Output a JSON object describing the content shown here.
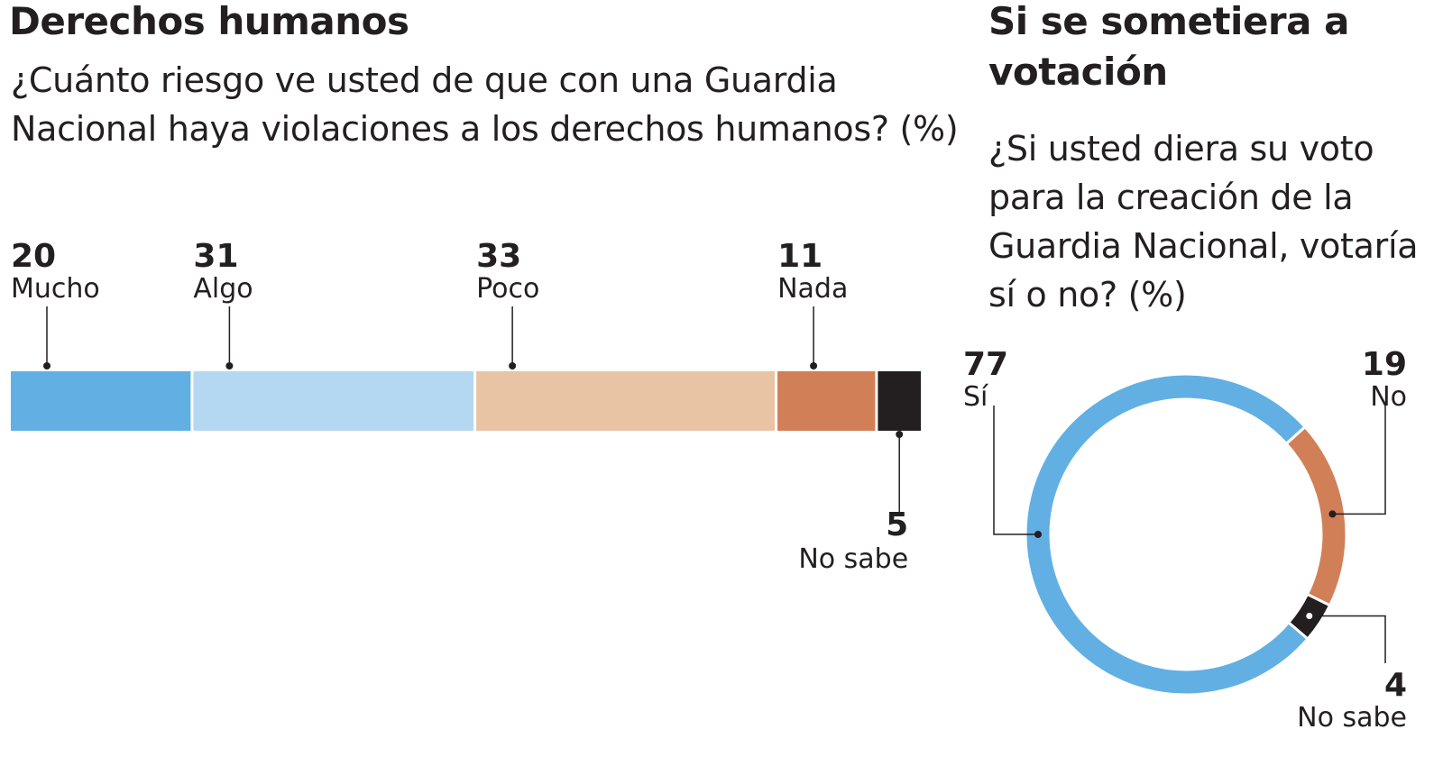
{
  "left": {
    "title": "Derechos humanos",
    "question": "¿Cuánto riesgo ve usted de que con una Guardia Nacional haya violaciones a los derechos humanos? (%)"
  },
  "right": {
    "title": "Si se sometiera a votación",
    "question": "¿Si usted diera su voto para la creación de la Guardia Nacional, votaría sí o no? (%)"
  },
  "chart_data": [
    {
      "type": "bar",
      "orientation": "horizontal-stacked",
      "categories": [
        "Mucho",
        "Algo",
        "Poco",
        "Nada",
        "No sabe"
      ],
      "values": [
        20,
        31,
        33,
        11,
        5
      ],
      "colors": [
        "#62b0e3",
        "#b5d8f2",
        "#e8c4a5",
        "#d17f57",
        "#231f20"
      ],
      "xlim": [
        0,
        100
      ],
      "grid": false,
      "legend": "none"
    },
    {
      "type": "pie",
      "variant": "donut",
      "categories": [
        "Sí",
        "No",
        "No sabe"
      ],
      "values": [
        77,
        19,
        4
      ],
      "colors": [
        "#62b0e3",
        "#d17f57",
        "#231f20"
      ],
      "grid": false,
      "legend": "none"
    }
  ]
}
